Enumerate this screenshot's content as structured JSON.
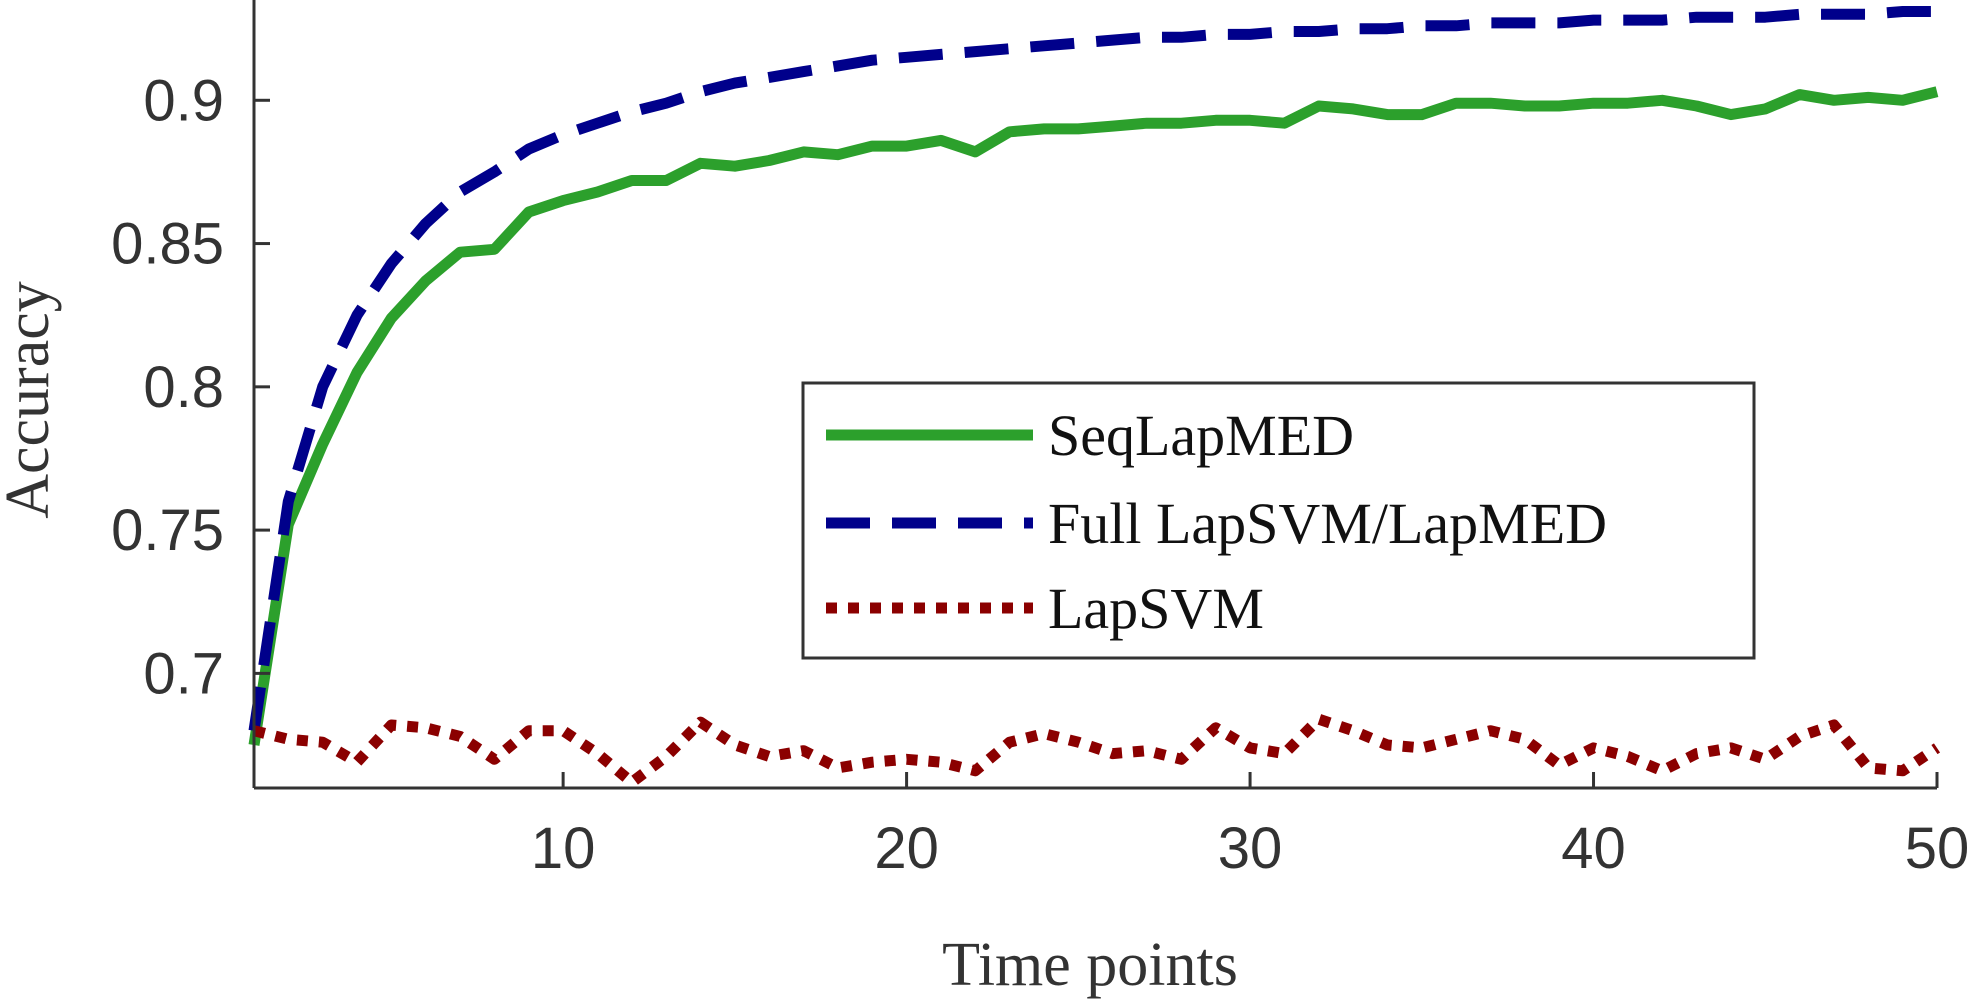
{
  "chart_data": {
    "type": "line",
    "title": "",
    "xlabel": "Time points",
    "ylabel": "Accuracy",
    "xlim": [
      1,
      50
    ],
    "ylim": [
      0.66,
      0.935
    ],
    "xticks": [
      10,
      20,
      30,
      40,
      50
    ],
    "xtick_labels": [
      "10",
      "20",
      "30",
      "40",
      "50"
    ],
    "yticks": [
      0.7,
      0.75,
      0.8,
      0.85,
      0.9
    ],
    "ytick_labels": [
      "0.7",
      "0.75",
      "0.8",
      "0.85",
      "0.9"
    ],
    "grid": false,
    "legend_position": "center-right",
    "x": [
      1,
      2,
      3,
      4,
      5,
      6,
      7,
      8,
      9,
      10,
      11,
      12,
      13,
      14,
      15,
      16,
      17,
      18,
      19,
      20,
      21,
      22,
      23,
      24,
      25,
      26,
      27,
      28,
      29,
      30,
      31,
      32,
      33,
      34,
      35,
      36,
      37,
      38,
      39,
      40,
      41,
      42,
      43,
      44,
      45,
      46,
      47,
      48,
      49,
      50
    ],
    "series": [
      {
        "name": "SeqLapMED",
        "color": "#2ca02c",
        "style": "solid",
        "values": [
          0.675,
          0.752,
          0.78,
          0.805,
          0.824,
          0.837,
          0.847,
          0.848,
          0.861,
          0.865,
          0.868,
          0.872,
          0.872,
          0.878,
          0.877,
          0.879,
          0.882,
          0.881,
          0.884,
          0.884,
          0.886,
          0.882,
          0.889,
          0.89,
          0.89,
          0.891,
          0.892,
          0.892,
          0.893,
          0.893,
          0.892,
          0.898,
          0.897,
          0.895,
          0.895,
          0.899,
          0.899,
          0.898,
          0.898,
          0.899,
          0.899,
          0.9,
          0.898,
          0.895,
          0.897,
          0.902,
          0.9,
          0.901,
          0.9,
          0.903
        ]
      },
      {
        "name": "Full LapSVM/LapMED",
        "color": "#00008b",
        "style": "dashed",
        "values": [
          0.68,
          0.76,
          0.8,
          0.825,
          0.843,
          0.857,
          0.868,
          0.875,
          0.883,
          0.888,
          0.892,
          0.896,
          0.899,
          0.903,
          0.906,
          0.908,
          0.91,
          0.912,
          0.914,
          0.915,
          0.916,
          0.917,
          0.918,
          0.919,
          0.92,
          0.921,
          0.922,
          0.922,
          0.923,
          0.923,
          0.924,
          0.924,
          0.925,
          0.925,
          0.926,
          0.926,
          0.927,
          0.927,
          0.927,
          0.928,
          0.928,
          0.928,
          0.929,
          0.929,
          0.929,
          0.93,
          0.93,
          0.93,
          0.931,
          0.931
        ]
      },
      {
        "name": "LapSVM",
        "color": "#8b0000",
        "style": "dotted",
        "values": [
          0.68,
          0.677,
          0.676,
          0.669,
          0.682,
          0.681,
          0.678,
          0.67,
          0.68,
          0.68,
          0.672,
          0.662,
          0.671,
          0.683,
          0.675,
          0.671,
          0.673,
          0.667,
          0.669,
          0.67,
          0.669,
          0.666,
          0.676,
          0.679,
          0.676,
          0.672,
          0.673,
          0.67,
          0.681,
          0.674,
          0.672,
          0.684,
          0.68,
          0.675,
          0.674,
          0.677,
          0.68,
          0.677,
          0.668,
          0.674,
          0.671,
          0.666,
          0.672,
          0.674,
          0.67,
          0.678,
          0.682,
          0.667,
          0.666,
          0.674
        ]
      }
    ]
  }
}
